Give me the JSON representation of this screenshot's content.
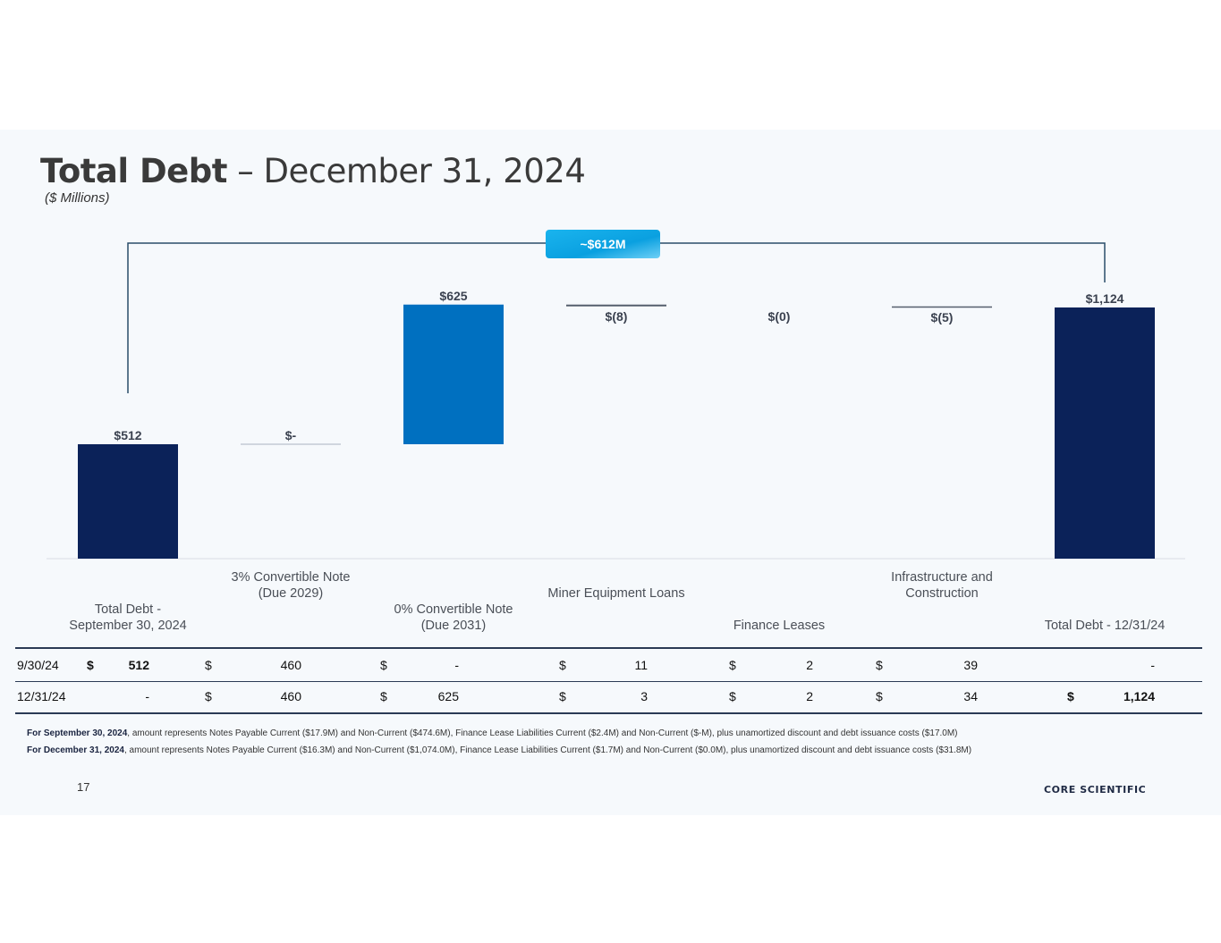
{
  "page": {
    "title_bold": "Total Debt",
    "title_rest": " – December 31, 2024",
    "subtitle": "($ Millions)",
    "page_number": "17",
    "logo_text": "CORE SCIENTIFIC"
  },
  "chart_data": {
    "type": "bar",
    "subtype": "waterfall",
    "title": "Total Debt – December 31, 2024",
    "unit": "$ Millions",
    "categories": [
      [
        "Total Debt -",
        "September 30, 2024"
      ],
      [
        "3% Convertible Note",
        "(Due 2029)"
      ],
      [
        "0% Convertible Note",
        "(Due 2031)"
      ],
      [
        "Miner Equipment Loans"
      ],
      [
        "Finance Leases"
      ],
      [
        "Infrastructure and",
        "Construction"
      ],
      [
        "Total Debt - 12/31/24"
      ]
    ],
    "values": [
      512,
      0,
      625,
      -8,
      0,
      -5,
      1124
    ],
    "kinds": [
      "total",
      "delta",
      "delta",
      "delta",
      "delta",
      "delta",
      "total"
    ],
    "value_labels": [
      "$512",
      "$-",
      "$625",
      "$(8)",
      "$(0)",
      "$(5)",
      "$1,124"
    ],
    "bracket_label": "~$612M",
    "colors": {
      "total": "#0b2259",
      "increase": "#0070c0",
      "connector": "#555f6d",
      "bracket": "#2a4d69",
      "badge": "#16aee8"
    }
  },
  "table": {
    "rows": [
      {
        "label": "9/30/24",
        "cells": [
          {
            "cur": "$",
            "val": "512",
            "bold": true
          },
          {
            "cur": "$",
            "val": "460"
          },
          {
            "cur": "$",
            "val": "-"
          },
          {
            "cur": "$",
            "val": "11"
          },
          {
            "cur": "$",
            "val": "2"
          },
          {
            "cur": "$",
            "val": "39"
          },
          {
            "cur": "",
            "val": "-"
          }
        ]
      },
      {
        "label": "12/31/24",
        "cells": [
          {
            "cur": "",
            "val": "-"
          },
          {
            "cur": "$",
            "val": "460"
          },
          {
            "cur": "$",
            "val": "625"
          },
          {
            "cur": "$",
            "val": "3"
          },
          {
            "cur": "$",
            "val": "2"
          },
          {
            "cur": "$",
            "val": "34"
          },
          {
            "cur": "$",
            "val": "1,124",
            "bold": true
          }
        ]
      }
    ]
  },
  "footnotes": [
    {
      "bold": "For September 30, 2024",
      "text": ", amount represents Notes Payable Current ($17.9M) and Non-Current ($474.6M), Finance Lease Liabilities Current ($2.4M) and Non-Current ($-M), plus unamortized discount and debt issuance costs  ($17.0M)"
    },
    {
      "bold": "For December 31, 2024",
      "text": ", amount represents Notes Payable Current ($16.3M) and Non-Current ($1,074.0M), Finance Lease Liabilities Current ($1.7M) and Non-Current ($0.0M), plus unamortized discount and debt issuance costs  ($31.8M)"
    }
  ]
}
